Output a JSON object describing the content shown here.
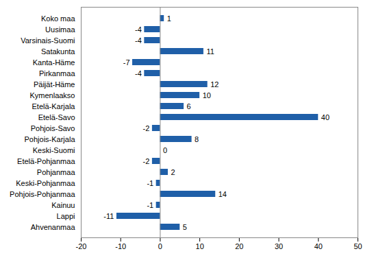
{
  "chart_data": {
    "type": "bar",
    "orientation": "horizontal",
    "color": "#1f5fa8",
    "categories": [
      "Koko maa",
      "Uusimaa",
      "Varsinais-Suomi",
      "Satakunta",
      "Kanta-Häme",
      "Pirkanmaa",
      "Päijät-Häme",
      "Kymenlaakso",
      "Etelä-Karjala",
      "Etelä-Savo",
      "Pohjois-Savo",
      "Pohjois-Karjala",
      "Keski-Suomi",
      "Etelä-Pohjanmaa",
      "Pohjanmaa",
      "Keski-Pohjanmaa",
      "Pohjois-Pohjanmaa",
      "Kainuu",
      "Lappi",
      "Ahvenanmaa"
    ],
    "values": [
      1,
      -4,
      -4,
      11,
      -7,
      -4,
      12,
      10,
      6,
      40,
      -2,
      8,
      0,
      -2,
      2,
      -1,
      14,
      -1,
      -11,
      5
    ],
    "xlim": [
      -20,
      50
    ],
    "xticks": [
      -20,
      -10,
      0,
      10,
      20,
      30,
      40,
      50
    ],
    "grid": false,
    "data_labels": true
  }
}
